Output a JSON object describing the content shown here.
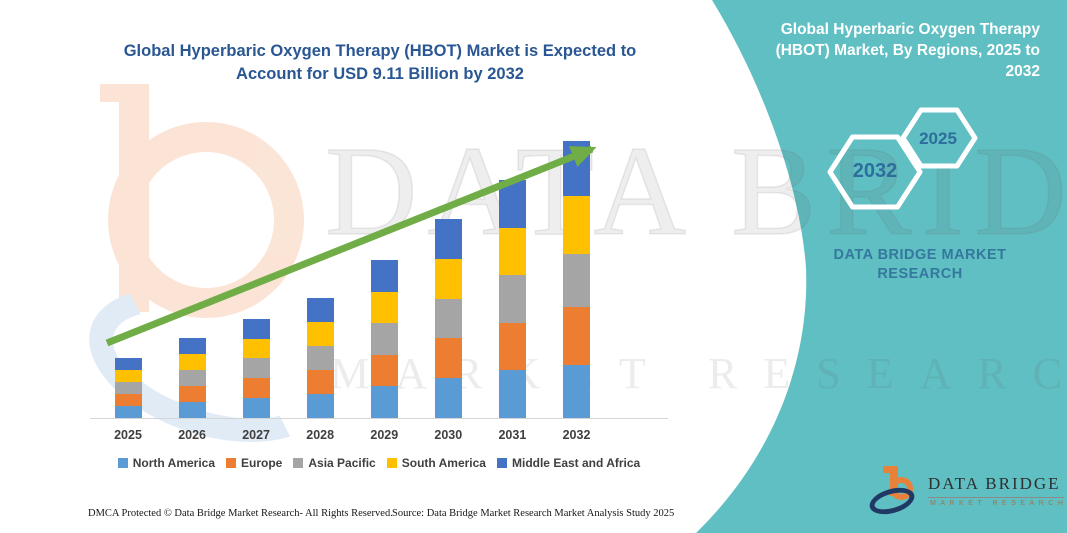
{
  "header": {
    "title": "Global Hyperbaric Oxygen Therapy (HBOT) Market is Expected to Account for USD 9.11 Billion by 2032"
  },
  "chart_data": {
    "type": "bar",
    "stacked": true,
    "title": "Global Hyperbaric Oxygen Therapy (HBOT) Market is Expected to Account for USD 9.11 Billion by 2032",
    "unit": "USD Billion",
    "categories": [
      "2025",
      "2026",
      "2027",
      "2028",
      "2029",
      "2030",
      "2031",
      "2032"
    ],
    "series": [
      {
        "name": "North America",
        "color": "#5B9BD5",
        "values": [
          0.4,
          0.53,
          0.65,
          0.79,
          1.04,
          1.31,
          1.57,
          1.76
        ]
      },
      {
        "name": "Europe",
        "color": "#ED7D31",
        "values": [
          0.39,
          0.52,
          0.65,
          0.79,
          1.04,
          1.31,
          1.56,
          1.89
        ]
      },
      {
        "name": "Asia Pacific",
        "color": "#A5A5A5",
        "values": [
          0.4,
          0.53,
          0.66,
          0.79,
          1.04,
          1.31,
          1.57,
          1.76
        ]
      },
      {
        "name": "South America",
        "color": "#FFC000",
        "values": [
          0.39,
          0.52,
          0.65,
          0.79,
          1.04,
          1.31,
          1.56,
          1.89
        ]
      },
      {
        "name": "Middle East and Africa",
        "color": "#4472C4",
        "values": [
          0.39,
          0.53,
          0.65,
          0.79,
          1.04,
          1.31,
          1.57,
          1.81
        ]
      }
    ],
    "totals": [
      1.97,
      2.63,
      3.26,
      3.95,
      5.2,
      6.55,
      7.83,
      9.11
    ],
    "ylim": [
      0,
      9.11
    ],
    "grid": false,
    "legend_position": "bottom",
    "trend_arrow": true,
    "trend_arrow_color": "#70AD47"
  },
  "side_panel": {
    "background": "#5FBFC2",
    "title": "Global Hyperbaric Oxygen Therapy (HBOT) Market, By Regions, 2025 to 2032",
    "hexagon_big": "2032",
    "hexagon_small": "2025",
    "brand": "DATA BRIDGE MARKET RESEARCH"
  },
  "watermark": {
    "line1": "DATA BRIDGE",
    "line2": "MARKET RESEARCH"
  },
  "footer": {
    "dmca": "DMCA Protected © Data Bridge Market Research- All Rights Reserved.",
    "source": "Source: Data Bridge Market Research Market Analysis Study 2025"
  },
  "logo": {
    "name": "DATA BRIDGE",
    "subtitle": "MARKET RESEARCH"
  }
}
